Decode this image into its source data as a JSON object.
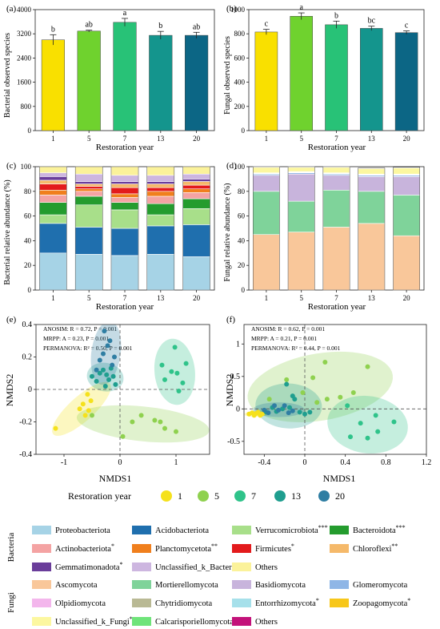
{
  "panels": {
    "a": {
      "label": "(a)",
      "ylabel": "Bacterial observed species",
      "xlabel": "Restoration year"
    },
    "b": {
      "label": "(b)",
      "ylabel": "Fungal observed species",
      "xlabel": "Restoration year"
    },
    "c": {
      "label": "(c)",
      "ylabel": "Bacterial relative abundance (%)",
      "xlabel": "Restoration year"
    },
    "d": {
      "label": "(d)",
      "ylabel": "Fungal relative abundance (%)",
      "xlabel": "Restoration year"
    },
    "e": {
      "label": "(e)",
      "xlabel": "NMDS1",
      "ylabel": "NMDS2",
      "stats": [
        "ANOSIM: R = 0.72, P = 0.001",
        "MRPP: A = 0.23, P = 0.001",
        "PERMANOVA: R² = 0.50, P = 0.001"
      ]
    },
    "f": {
      "label": "(f)",
      "xlabel": "NMDS1",
      "ylabel": "NMDS2",
      "stats": [
        "ANOSIM: R = 0.62, P = 0.001",
        "MRPP: A = 0.21, P = 0.001",
        "PERMANOVA: R² = 0.44, P = 0.001"
      ]
    }
  },
  "group_legend": {
    "title": "Restoration year",
    "items": [
      {
        "label": "1",
        "color": "#f5e11c"
      },
      {
        "label": "5",
        "color": "#8fd14f"
      },
      {
        "label": "7",
        "color": "#2fc38a"
      },
      {
        "label": "13",
        "color": "#1f9e8f"
      },
      {
        "label": "20",
        "color": "#2f7ea3"
      }
    ]
  },
  "taxa_legend": {
    "bacteria_label": "Bacteria",
    "fungi_label": "Fungi",
    "bacteria": [
      {
        "name": "Proteobacteriota",
        "sig": "",
        "color": "#a6d3e6"
      },
      {
        "name": "Acidobacteriota",
        "sig": "",
        "color": "#1f6fae"
      },
      {
        "name": "Verrucomicrobiota",
        "sig": "***",
        "color": "#a8df8a"
      },
      {
        "name": "Bacteroidota",
        "sig": "***",
        "color": "#249c2e"
      },
      {
        "name": "Actinobacteriota",
        "sig": "*",
        "color": "#f4a3a3"
      },
      {
        "name": "Planctomycetota",
        "sig": "**",
        "color": "#f07f1d"
      },
      {
        "name": "Firmicutes",
        "sig": "*",
        "color": "#e31a1c"
      },
      {
        "name": "Chloroflexi",
        "sig": "**",
        "color": "#f5b96a"
      },
      {
        "name": "Gemmatimonadota",
        "sig": "*",
        "color": "#6a3d9a"
      },
      {
        "name": "Unclassified_k_Bacteria",
        "sig": "",
        "color": "#cdb6e0"
      },
      {
        "name": "Others",
        "sig": "",
        "color": "#fbf29a"
      }
    ],
    "fungi": [
      {
        "name": "Ascomycota",
        "sig": "",
        "color": "#f9c79a"
      },
      {
        "name": "Mortierellomycota",
        "sig": "",
        "color": "#7fd39a"
      },
      {
        "name": "Basidiomycota",
        "sig": "",
        "color": "#c8b4dc"
      },
      {
        "name": "Glomeromycota",
        "sig": "",
        "color": "#8fb6e6"
      },
      {
        "name": "Olpidiomycota",
        "sig": "",
        "color": "#f3b6ec"
      },
      {
        "name": "Chytridiomycota",
        "sig": "",
        "color": "#b9b994"
      },
      {
        "name": "Entorrhizomycota",
        "sig": "*",
        "color": "#a6e0ea"
      },
      {
        "name": "Zoopagomycota",
        "sig": "*",
        "color": "#f7c71a"
      },
      {
        "name": "Unclassified_k_Fungi",
        "sig": "*",
        "color": "#fcf7a0"
      },
      {
        "name": "Calcarisporiellomycota",
        "sig": "",
        "color": "#6fe47a"
      },
      {
        "name": "Others",
        "sig": "",
        "color": "#c3127a"
      }
    ]
  },
  "chart_data": [
    {
      "id": "a",
      "type": "bar",
      "categories": [
        "1",
        "5",
        "7",
        "13",
        "20"
      ],
      "values": [
        3000,
        3290,
        3580,
        3150,
        3150
      ],
      "errors": [
        170,
        30,
        130,
        130,
        100
      ],
      "letters": [
        "b",
        "ab",
        "a",
        "b",
        "ab"
      ],
      "colors": [
        "#f9e000",
        "#6fd22e",
        "#28c277",
        "#14958d",
        "#0c6685"
      ],
      "ylim": [
        0,
        4000
      ],
      "yticks": [
        0,
        800,
        1600,
        2400,
        3200,
        4000
      ],
      "xlabel": "Restoration year",
      "ylabel": "Bacterial observed species"
    },
    {
      "id": "b",
      "type": "bar",
      "categories": [
        "1",
        "5",
        "7",
        "13",
        "20"
      ],
      "values": [
        815,
        945,
        875,
        845,
        810
      ],
      "errors": [
        22,
        28,
        30,
        18,
        14
      ],
      "letters": [
        "c",
        "a",
        "b",
        "bc",
        "c"
      ],
      "colors": [
        "#f9e000",
        "#6fd22e",
        "#28c277",
        "#14958d",
        "#0c6685"
      ],
      "ylim": [
        0,
        1000
      ],
      "yticks": [
        0,
        200,
        400,
        600,
        800,
        1000
      ],
      "xlabel": "Restoration year",
      "ylabel": "Fungal observed species"
    },
    {
      "id": "c",
      "type": "bar",
      "stacked": true,
      "categories": [
        "1",
        "5",
        "7",
        "13",
        "20"
      ],
      "ylim": [
        0,
        100
      ],
      "yticks": [
        0,
        20,
        40,
        60,
        80,
        100
      ],
      "xlabel": "Restoration year",
      "ylabel": "Bacterial relative abundance (%)",
      "series": [
        {
          "name": "Proteobacteriota",
          "values": [
            30,
            29,
            28,
            29,
            27
          ]
        },
        {
          "name": "Acidobacteriota",
          "values": [
            24,
            22,
            22,
            23,
            26
          ]
        },
        {
          "name": "Verrucomicrobiota",
          "values": [
            7,
            18,
            15,
            9,
            13
          ]
        },
        {
          "name": "Bacteroidota",
          "values": [
            10,
            7,
            6,
            9,
            8
          ]
        },
        {
          "name": "Actinobacteriota",
          "values": [
            6,
            4,
            4,
            6,
            5
          ]
        },
        {
          "name": "Planctomycetota",
          "values": [
            4,
            2,
            3,
            4,
            3
          ]
        },
        {
          "name": "Firmicutes",
          "values": [
            5,
            2,
            5,
            3,
            3
          ]
        },
        {
          "name": "Chloroflexi",
          "values": [
            3,
            2,
            3,
            3,
            3
          ]
        },
        {
          "name": "Gemmatimonadota",
          "values": [
            3,
            2,
            2,
            2,
            2
          ]
        },
        {
          "name": "Unclassified_k_Bacteria",
          "values": [
            3,
            6,
            5,
            5,
            4
          ]
        },
        {
          "name": "Others",
          "values": [
            5,
            6,
            7,
            7,
            6
          ]
        }
      ]
    },
    {
      "id": "d",
      "type": "bar",
      "stacked": true,
      "categories": [
        "1",
        "5",
        "7",
        "13",
        "20"
      ],
      "ylim": [
        0,
        100
      ],
      "yticks": [
        0,
        20,
        40,
        60,
        80,
        100
      ],
      "xlabel": "Restoration year",
      "ylabel": "Fungal relative abundance (%)",
      "series": [
        {
          "name": "Ascomycota",
          "values": [
            45,
            47,
            51,
            54,
            44
          ]
        },
        {
          "name": "Mortierellomycota",
          "values": [
            35,
            25,
            30,
            26,
            33
          ]
        },
        {
          "name": "Basidiomycota",
          "values": [
            13,
            22,
            12,
            12,
            15
          ]
        },
        {
          "name": "Glomeromycota",
          "values": [
            1,
            1,
            1,
            1,
            1
          ]
        },
        {
          "name": "Olpidiomycota",
          "values": [
            0.3,
            0.3,
            0.3,
            0.3,
            0.3
          ]
        },
        {
          "name": "Chytridiomycota",
          "values": [
            0.3,
            0.3,
            0.3,
            0.3,
            0.3
          ]
        },
        {
          "name": "Entorrhizomycota",
          "values": [
            0.2,
            0.2,
            0.2,
            0.2,
            0.2
          ]
        },
        {
          "name": "Zoopagomycota",
          "values": [
            0.2,
            0.2,
            0.2,
            0.2,
            0.2
          ]
        },
        {
          "name": "Unclassified_k_Fungi",
          "values": [
            4.5,
            3.5,
            4.5,
            4.5,
            5
          ]
        },
        {
          "name": "Calcarisporiellomycota",
          "values": [
            0.2,
            0.2,
            0.2,
            0.2,
            0.2
          ]
        },
        {
          "name": "Others",
          "values": [
            0.3,
            0.3,
            0.3,
            0.3,
            0.3
          ]
        }
      ]
    },
    {
      "id": "e",
      "type": "scatter",
      "xlim": [
        -1.5,
        1.6
      ],
      "ylim": [
        -0.4,
        0.4
      ],
      "xticks": [
        -1,
        0,
        1
      ],
      "yticks": [
        -0.4,
        -0.2,
        0.0,
        0.2,
        0.4
      ],
      "xlabel": "NMDS1",
      "ylabel": "NMDS2",
      "series": [
        {
          "name": "1",
          "points": [
            [
              -1.15,
              -0.24
            ],
            [
              -0.72,
              -0.12
            ],
            [
              -0.66,
              -0.09
            ],
            [
              -0.62,
              -0.16
            ],
            [
              -0.58,
              -0.03
            ],
            [
              -0.56,
              -0.13
            ],
            [
              -0.52,
              -0.07
            ]
          ]
        },
        {
          "name": "5",
          "points": [
            [
              -0.5,
              -0.16
            ],
            [
              0.05,
              -0.29
            ],
            [
              0.22,
              -0.2
            ],
            [
              0.38,
              -0.16
            ],
            [
              0.62,
              -0.19
            ],
            [
              0.72,
              -0.2
            ],
            [
              0.8,
              -0.24
            ],
            [
              1.0,
              -0.26
            ]
          ]
        },
        {
          "name": "7",
          "points": [
            [
              0.75,
              0.15
            ],
            [
              0.8,
              0.06
            ],
            [
              0.92,
              0.11
            ],
            [
              0.98,
              0.26
            ],
            [
              1.02,
              0.1
            ],
            [
              1.05,
              -0.01
            ],
            [
              1.12,
              0.04
            ],
            [
              1.18,
              0.16
            ]
          ]
        },
        {
          "name": "13",
          "points": [
            [
              -0.5,
              0.08
            ],
            [
              -0.42,
              0.05
            ],
            [
              -0.36,
              0.1
            ],
            [
              -0.3,
              0.12
            ],
            [
              -0.26,
              0.02
            ],
            [
              -0.2,
              0.06
            ],
            [
              -0.16,
              0.13
            ],
            [
              -0.12,
              0.08
            ],
            [
              -0.08,
              0.03
            ],
            [
              -0.24,
              0.09
            ]
          ]
        },
        {
          "name": "20",
          "points": [
            [
              -0.42,
              0.12
            ],
            [
              -0.36,
              0.18
            ],
            [
              -0.3,
              0.22
            ],
            [
              -0.28,
              0.36
            ],
            [
              -0.22,
              0.27
            ],
            [
              -0.18,
              0.3
            ],
            [
              -0.1,
              0.2
            ],
            [
              -0.14,
              0.15
            ]
          ]
        }
      ]
    },
    {
      "id": "f",
      "type": "scatter",
      "xlim": [
        -0.6,
        1.2
      ],
      "ylim": [
        -0.7,
        1.3
      ],
      "xticks": [
        -0.4,
        0.0,
        0.4,
        0.8,
        1.2
      ],
      "yticks": [
        -0.5,
        0.0,
        0.5,
        1.0
      ],
      "xlabel": "NMDS1",
      "ylabel": "NMDS2",
      "series": [
        {
          "name": "1",
          "points": [
            [
              -0.55,
              -0.08
            ],
            [
              -0.52,
              -0.06
            ],
            [
              -0.5,
              -0.1
            ],
            [
              -0.48,
              -0.07
            ],
            [
              -0.46,
              -0.05
            ],
            [
              -0.44,
              -0.1
            ],
            [
              -0.42,
              -0.08
            ],
            [
              -0.4,
              -0.05
            ]
          ]
        },
        {
          "name": "5",
          "points": [
            [
              -0.35,
              0.15
            ],
            [
              -0.18,
              0.45
            ],
            [
              -0.02,
              0.25
            ],
            [
              0.08,
              0.48
            ],
            [
              0.12,
              0.1
            ],
            [
              0.22,
              0.15
            ],
            [
              0.2,
              0.72
            ],
            [
              0.35,
              0.18
            ],
            [
              0.48,
              0.25
            ],
            [
              0.62,
              0.65
            ]
          ]
        },
        {
          "name": "7",
          "points": [
            [
              0.42,
              0.05
            ],
            [
              0.45,
              -0.43
            ],
            [
              0.55,
              -0.22
            ],
            [
              0.62,
              -0.45
            ],
            [
              0.7,
              -0.1
            ],
            [
              0.72,
              -0.35
            ],
            [
              0.88,
              -0.2
            ]
          ]
        },
        {
          "name": "13",
          "points": [
            [
              -0.38,
              -0.05
            ],
            [
              -0.32,
              0.02
            ],
            [
              -0.28,
              -0.04
            ],
            [
              -0.22,
              0.0
            ],
            [
              -0.15,
              0.02
            ],
            [
              -0.1,
              0.15
            ],
            [
              -0.05,
              -0.05
            ],
            [
              0.0,
              -0.08
            ],
            [
              0.05,
              -0.05
            ],
            [
              -0.18,
              0.38
            ],
            [
              -0.12,
              0.2
            ]
          ]
        },
        {
          "name": "20",
          "points": [
            [
              -0.4,
              -0.02
            ],
            [
              -0.36,
              -0.06
            ],
            [
              -0.3,
              0.05
            ],
            [
              -0.26,
              -0.02
            ],
            [
              -0.2,
              0.05
            ],
            [
              -0.16,
              -0.06
            ],
            [
              -0.12,
              -0.03
            ]
          ]
        }
      ]
    }
  ]
}
